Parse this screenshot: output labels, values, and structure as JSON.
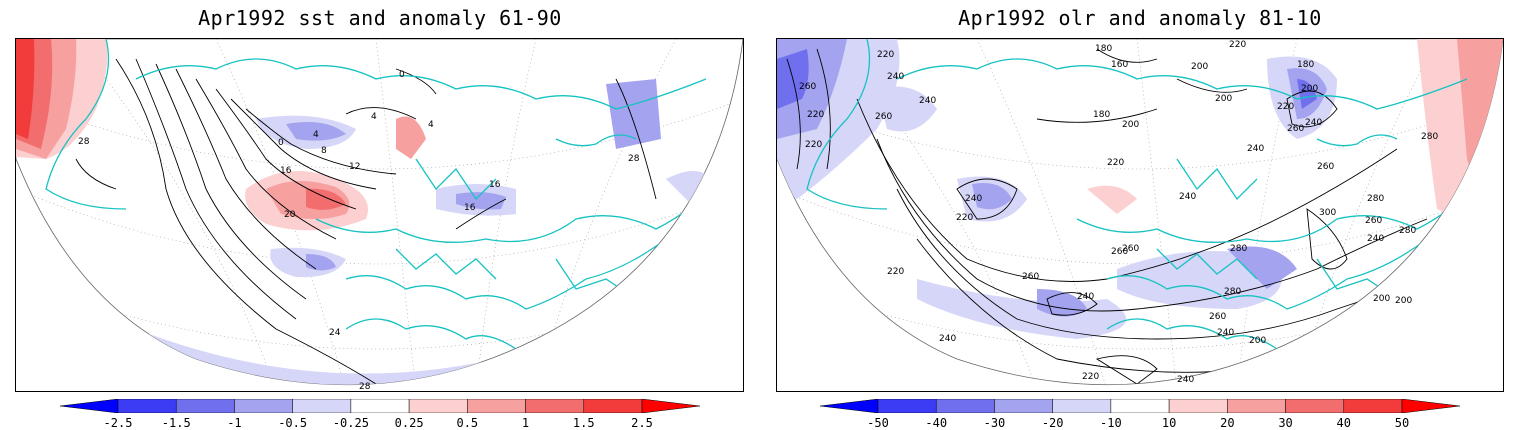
{
  "panels": [
    {
      "title": "Apr1992 sst and anomaly 61-90",
      "colorbar": {
        "colors": [
          "#0000ff",
          "#3c3cf5",
          "#7070ee",
          "#a3a3f0",
          "#d6d6f8",
          "#ffffff",
          "#fcd0d0",
          "#f7a0a0",
          "#f26e6e",
          "#f23c3c",
          "#ff0000"
        ],
        "labels": [
          "-2.5",
          "-1.5",
          "-1",
          "-0.5",
          "-0.25",
          "0.25",
          "0.5",
          "1",
          "1.5",
          "2.5"
        ]
      },
      "contour_labels": [
        "28",
        "0",
        "4",
        "4",
        "0",
        "4",
        "8",
        "12",
        "16",
        "16",
        "20",
        "16",
        "24",
        "28",
        "28"
      ]
    },
    {
      "title": "Apr1992 olr and anomaly 81-10",
      "colorbar": {
        "colors": [
          "#0000ff",
          "#3c3cf5",
          "#7070ee",
          "#a3a3f0",
          "#d6d6f8",
          "#ffffff",
          "#fcd0d0",
          "#f7a0a0",
          "#f26e6e",
          "#f23c3c",
          "#ff0000"
        ],
        "labels": [
          "-50",
          "-40",
          "-30",
          "-20",
          "-10",
          "10",
          "20",
          "30",
          "40",
          "50"
        ]
      },
      "contour_labels": [
        "220",
        "240",
        "260",
        "240",
        "220",
        "260",
        "180",
        "160",
        "200",
        "180",
        "200",
        "200",
        "220",
        "180",
        "200",
        "220",
        "240",
        "220",
        "220",
        "240",
        "260",
        "280",
        "260",
        "280",
        "300",
        "260",
        "240",
        "280",
        "240",
        "220",
        "260",
        "240",
        "280",
        "280",
        "200",
        "260",
        "240",
        "220",
        "240",
        "260",
        "220",
        "240",
        "240",
        "200",
        "260",
        "200"
      ]
    }
  ],
  "colors": {
    "coastline": "#17c2c2",
    "contour": "#000000",
    "grid": "#9a9a9a"
  }
}
